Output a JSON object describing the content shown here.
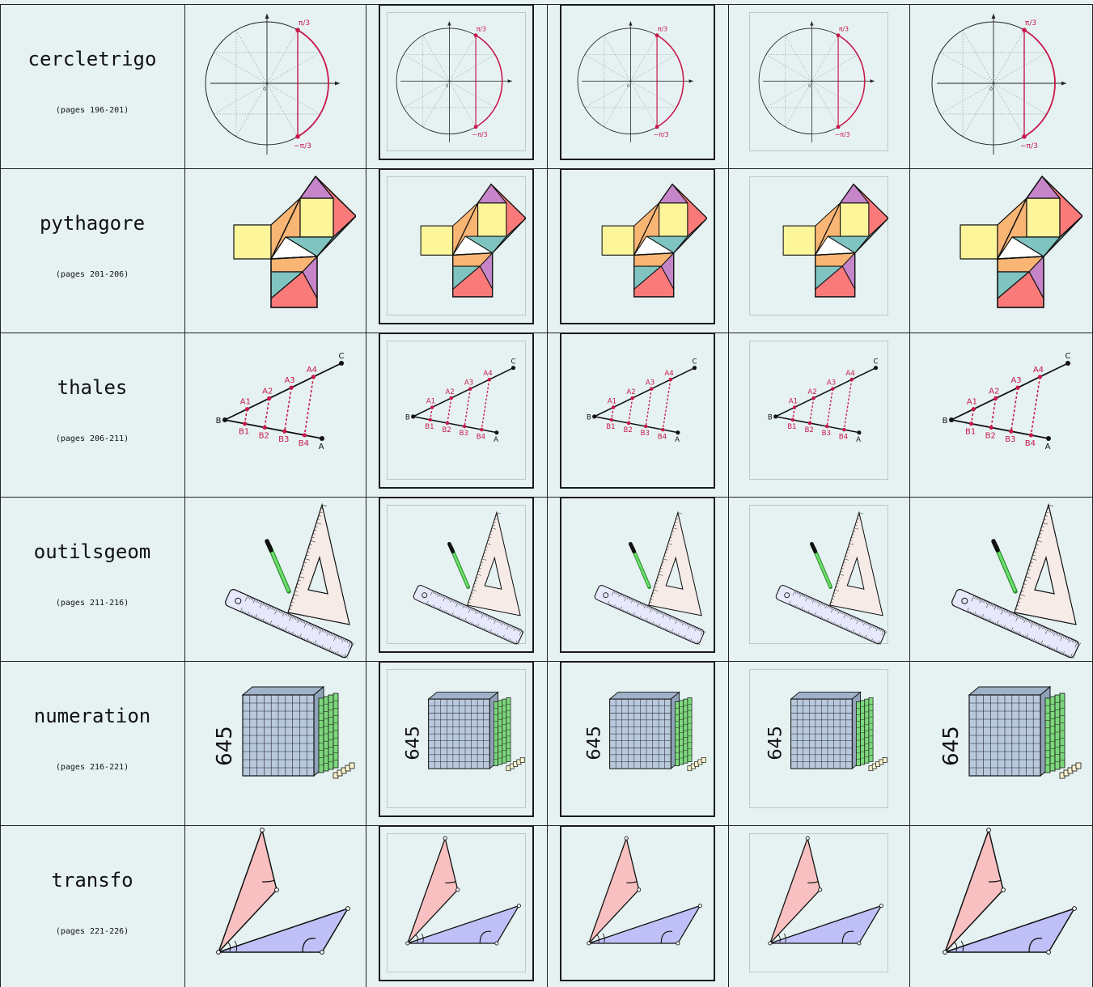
{
  "rows": [
    {
      "name": "cercletrigo",
      "pages": "(pages 196-201)",
      "figure": "trig-circle",
      "labels": {
        "top": "π/3",
        "bottom": "−π/3",
        "origin": "0"
      }
    },
    {
      "name": "pythagore",
      "pages": "(pages 201-206)",
      "figure": "pythagoras-squares"
    },
    {
      "name": "thales",
      "pages": "(pages 206-211)",
      "figure": "thales-lines",
      "labels": {
        "top": [
          "A1",
          "A2",
          "A3",
          "A4"
        ],
        "bottom": [
          "B1",
          "B2",
          "B3",
          "B4"
        ],
        "B": "B",
        "C": "C",
        "A": "A"
      }
    },
    {
      "name": "outilsgeom",
      "pages": "(pages 211-216)",
      "figure": "ruler-setsquare-pencil"
    },
    {
      "name": "numeration",
      "pages": "(pages 216-221)",
      "figure": "base-ten-blocks",
      "labels": {
        "number": "645"
      }
    },
    {
      "name": "transfo",
      "pages": "(pages 221-226)",
      "figure": "triangles-angles"
    }
  ],
  "column_styles": [
    "plain",
    "double-frame",
    "dark-frame",
    "light-frame",
    "plain"
  ],
  "colors": {
    "background": "#e6f2f2",
    "accent": "#c8174a",
    "purple": "#c585c8",
    "red": "#fa7a7a",
    "yellow": "#fdf59a",
    "orange": "#f9b574",
    "teal": "#7fc4c0",
    "blue_triangle": "#c0c0f8",
    "pink_triangle": "#f8c0c0",
    "cube": "#b9c9dc",
    "rod": "#7dd87d",
    "unit": "#fbf3cf"
  }
}
